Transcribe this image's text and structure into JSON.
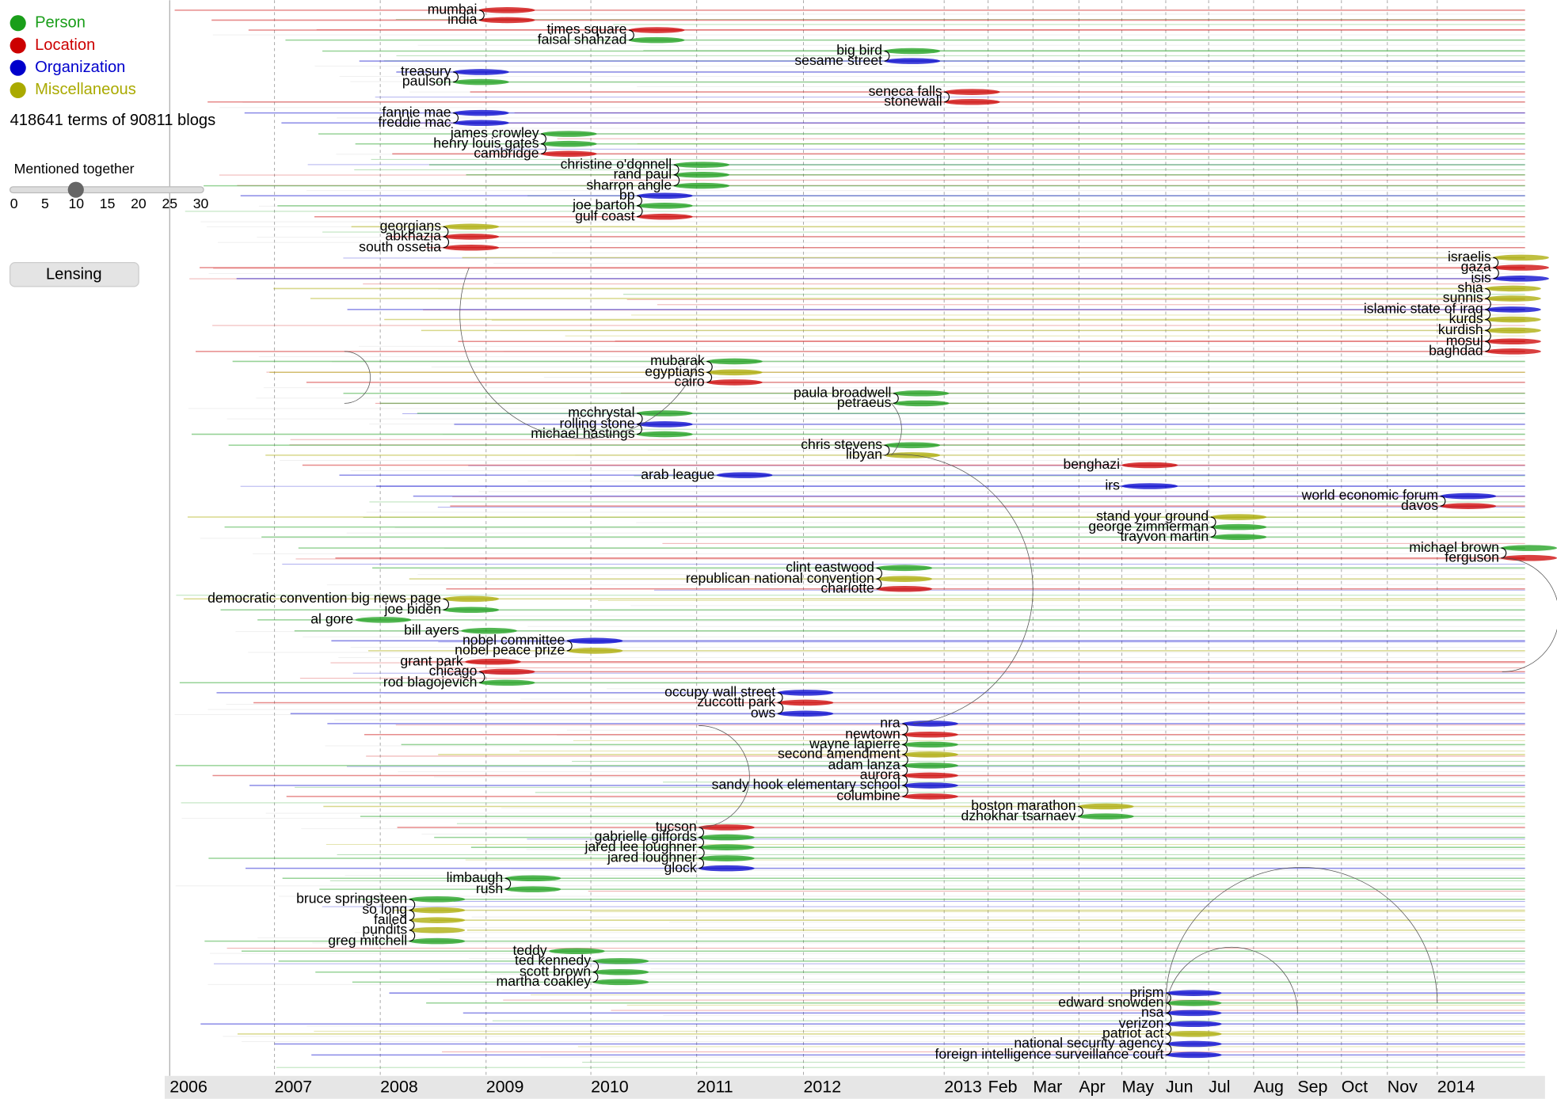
{
  "legend": [
    "Person",
    "Location",
    "Organization",
    "Miscellaneous"
  ],
  "stats": "418641 terms of 90811 blogs",
  "slider": {
    "label": "Mentioned together",
    "ticks": [
      0,
      5,
      10,
      15,
      20,
      25,
      30
    ]
  },
  "button": "Lensing",
  "timeline": [
    "2006",
    "2007",
    "2008",
    "2009",
    "2010",
    "2011",
    "2012",
    "2013",
    "Feb",
    "Mar",
    "Apr",
    "May",
    "Jun",
    "Jul",
    "Aug",
    "Sep",
    "Oct",
    "Nov",
    "2014"
  ],
  "terms": [
    "mumbai",
    "india",
    "times square",
    "faisal shahzad",
    "big bird",
    "sesame street",
    "treasury",
    "paulson",
    "seneca falls",
    "stonewall",
    "fannie mae",
    "freddie mac",
    "james crowley",
    "henry louis gates",
    "cambridge",
    "christine o'donnell",
    "rand paul",
    "sharron angle",
    "bp",
    "joe barton",
    "gulf coast",
    "georgians",
    "abkhazia",
    "south ossetia",
    "israelis",
    "gaza",
    "isis",
    "shia",
    "sunnis",
    "islamic state of iraq",
    "kurds",
    "kurdish",
    "mosul",
    "baghdad",
    "mubarak",
    "egyptians",
    "cairo",
    "paula broadwell",
    "petraeus",
    "mcchrystal",
    "rolling stone",
    "michael hastings",
    "chris stevens",
    "libyan",
    "benghazi",
    "arab league",
    "irs",
    "world economic forum",
    "davos",
    "stand your ground",
    "george zimmerman",
    "trayvon martin",
    "michael brown",
    "ferguson",
    "clint eastwood",
    "republican national convention",
    "charlotte",
    "democratic convention big news page",
    "joe biden",
    "al gore",
    "bill ayers",
    "nobel committee",
    "nobel peace prize",
    "grant park",
    "chicago",
    "rod blagojevich",
    "occupy wall street",
    "zuccotti park",
    "ows",
    "nra",
    "newtown",
    "wayne lapierre",
    "second amendment",
    "adam lanza",
    "aurora",
    "sandy hook elementary school",
    "columbine",
    "boston marathon",
    "dzhokhar tsarnaev",
    "tucson",
    "gabrielle giffords",
    "jared lee loughner",
    "jared loughner",
    "glock",
    "limbaugh",
    "rush",
    "bruce springsteen",
    "so long",
    "failed",
    "pundits",
    "greg mitchell",
    "teddy",
    "ted kennedy",
    "scott brown",
    "martha coakley",
    "prism",
    "edward snowden",
    "nsa",
    "verizon",
    "patriot act",
    "national security agency",
    "foreign intelligence surveillance court"
  ]
}
